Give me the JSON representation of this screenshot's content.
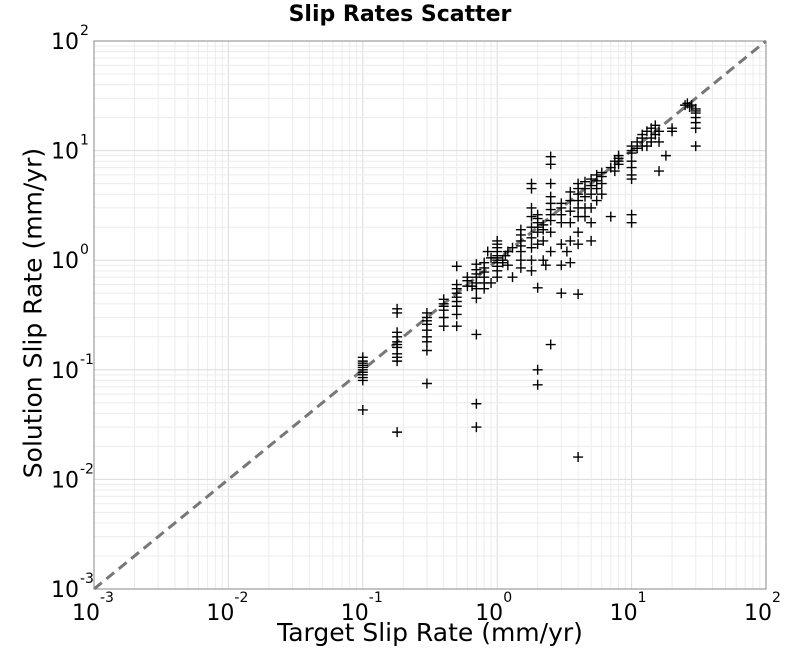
{
  "chart_data": {
    "type": "scatter",
    "title": "Slip Rates Scatter",
    "xlabel": "Target Slip Rate (mm/yr)",
    "ylabel": "Solution Slip Rate (mm/yr)",
    "xscale": "log",
    "yscale": "log",
    "xlim": [
      0.001,
      100
    ],
    "ylim": [
      0.001,
      100
    ],
    "grid": true,
    "marker": "+",
    "marker_color": "#000000",
    "reference_line": {
      "style": "dashed",
      "color": "#777777",
      "x": [
        0.001,
        100
      ],
      "y": [
        0.001,
        100
      ]
    },
    "x_ticks": [
      {
        "base": "10",
        "exp": "-3"
      },
      {
        "base": "10",
        "exp": "-2"
      },
      {
        "base": "10",
        "exp": "-1"
      },
      {
        "base": "10",
        "exp": "0"
      },
      {
        "base": "10",
        "exp": "1"
      },
      {
        "base": "10",
        "exp": "2"
      }
    ],
    "y_ticks": [
      {
        "base": "10",
        "exp": "-3"
      },
      {
        "base": "10",
        "exp": "-2"
      },
      {
        "base": "10",
        "exp": "-1"
      },
      {
        "base": "10",
        "exp": "0"
      },
      {
        "base": "10",
        "exp": "1"
      },
      {
        "base": "10",
        "exp": "2"
      }
    ],
    "points": [
      [
        0.1,
        0.08
      ],
      [
        0.1,
        0.09
      ],
      [
        0.1,
        0.1
      ],
      [
        0.1,
        0.11
      ],
      [
        0.1,
        0.12
      ],
      [
        0.1,
        0.13
      ],
      [
        0.1,
        0.085
      ],
      [
        0.1,
        0.095
      ],
      [
        0.1,
        0.105
      ],
      [
        0.1,
        0.115
      ],
      [
        0.1,
        0.043
      ],
      [
        0.18,
        0.027
      ],
      [
        0.18,
        0.14
      ],
      [
        0.18,
        0.16
      ],
      [
        0.18,
        0.18
      ],
      [
        0.18,
        0.2
      ],
      [
        0.18,
        0.22
      ],
      [
        0.18,
        0.12
      ],
      [
        0.18,
        0.13
      ],
      [
        0.18,
        0.33
      ],
      [
        0.18,
        0.36
      ],
      [
        0.18,
        0.17
      ],
      [
        0.3,
        0.075
      ],
      [
        0.3,
        0.15
      ],
      [
        0.3,
        0.18
      ],
      [
        0.3,
        0.2
      ],
      [
        0.3,
        0.23
      ],
      [
        0.3,
        0.26
      ],
      [
        0.3,
        0.28
      ],
      [
        0.3,
        0.3
      ],
      [
        0.3,
        0.33
      ],
      [
        0.4,
        0.25
      ],
      [
        0.4,
        0.3
      ],
      [
        0.4,
        0.35
      ],
      [
        0.4,
        0.38
      ],
      [
        0.4,
        0.4
      ],
      [
        0.4,
        0.44
      ],
      [
        0.5,
        0.25
      ],
      [
        0.5,
        0.32
      ],
      [
        0.5,
        0.38
      ],
      [
        0.5,
        0.42
      ],
      [
        0.5,
        0.46
      ],
      [
        0.5,
        0.5
      ],
      [
        0.5,
        0.55
      ],
      [
        0.5,
        0.6
      ],
      [
        0.5,
        0.88
      ],
      [
        0.6,
        0.58
      ],
      [
        0.6,
        0.65
      ],
      [
        0.6,
        0.7
      ],
      [
        0.65,
        0.58
      ],
      [
        0.7,
        0.049
      ],
      [
        0.7,
        0.03
      ],
      [
        0.7,
        0.21
      ],
      [
        0.7,
        0.45
      ],
      [
        0.7,
        0.55
      ],
      [
        0.7,
        0.62
      ],
      [
        0.7,
        0.7
      ],
      [
        0.7,
        0.75
      ],
      [
        0.7,
        0.82
      ],
      [
        0.7,
        0.92
      ],
      [
        0.8,
        0.55
      ],
      [
        0.8,
        0.62
      ],
      [
        0.8,
        0.7
      ],
      [
        0.8,
        0.78
      ],
      [
        0.8,
        0.85
      ],
      [
        0.8,
        0.95
      ],
      [
        0.85,
        1.2
      ],
      [
        0.9,
        0.62
      ],
      [
        0.9,
        1.05
      ],
      [
        1.0,
        0.7
      ],
      [
        1.0,
        0.8
      ],
      [
        1.0,
        0.88
      ],
      [
        1.0,
        0.95
      ],
      [
        1.0,
        1.0
      ],
      [
        1.0,
        1.05
      ],
      [
        1.0,
        1.1
      ],
      [
        1.0,
        1.2
      ],
      [
        1.0,
        1.3
      ],
      [
        1.0,
        1.4
      ],
      [
        1.0,
        1.5
      ],
      [
        1.1,
        0.95
      ],
      [
        1.1,
        1.0
      ],
      [
        1.15,
        1.1
      ],
      [
        1.2,
        0.9
      ],
      [
        1.2,
        1.2
      ],
      [
        1.3,
        0.7
      ],
      [
        1.3,
        1.3
      ],
      [
        1.5,
        1.0
      ],
      [
        1.5,
        1.2
      ],
      [
        1.5,
        1.35
      ],
      [
        1.5,
        1.5
      ],
      [
        1.5,
        1.7
      ],
      [
        1.5,
        1.9
      ],
      [
        1.5,
        0.85
      ],
      [
        1.8,
        0.8
      ],
      [
        1.8,
        1.0
      ],
      [
        1.8,
        1.3
      ],
      [
        1.8,
        1.6
      ],
      [
        1.8,
        2.0
      ],
      [
        1.8,
        2.5
      ],
      [
        1.8,
        3.0
      ],
      [
        1.8,
        4.5
      ],
      [
        1.8,
        5.0
      ],
      [
        2.0,
        0.1
      ],
      [
        2.0,
        0.073
      ],
      [
        2.0,
        0.56
      ],
      [
        2.0,
        1.4
      ],
      [
        2.0,
        1.8
      ],
      [
        2.0,
        2.0
      ],
      [
        2.0,
        2.2
      ],
      [
        2.0,
        2.4
      ],
      [
        2.0,
        2.6
      ],
      [
        2.2,
        1.0
      ],
      [
        2.2,
        1.5
      ],
      [
        2.2,
        1.9
      ],
      [
        2.2,
        2.1
      ],
      [
        2.3,
        0.9
      ],
      [
        2.5,
        0.17
      ],
      [
        2.5,
        1.2
      ],
      [
        2.5,
        1.8
      ],
      [
        2.5,
        2.3
      ],
      [
        2.5,
        2.6
      ],
      [
        2.5,
        2.9
      ],
      [
        2.5,
        3.3
      ],
      [
        2.5,
        3.8
      ],
      [
        2.5,
        5.0
      ],
      [
        2.5,
        7.5
      ],
      [
        2.5,
        8.8
      ],
      [
        3.0,
        0.5
      ],
      [
        3.0,
        0.9
      ],
      [
        3.0,
        1.4
      ],
      [
        3.0,
        2.2
      ],
      [
        3.0,
        2.6
      ],
      [
        3.0,
        3.0
      ],
      [
        3.0,
        3.3
      ],
      [
        3.3,
        1.2
      ],
      [
        3.5,
        1.5
      ],
      [
        3.5,
        2.2
      ],
      [
        3.5,
        2.8
      ],
      [
        3.5,
        3.5
      ],
      [
        3.5,
        4.2
      ],
      [
        3.5,
        0.95
      ],
      [
        4.0,
        0.49
      ],
      [
        4.0,
        0.016
      ],
      [
        4.0,
        1.4
      ],
      [
        4.0,
        2.5
      ],
      [
        4.0,
        3.0
      ],
      [
        4.0,
        3.5
      ],
      [
        4.0,
        4.0
      ],
      [
        4.0,
        4.5
      ],
      [
        4.0,
        5.0
      ],
      [
        4.0,
        1.8
      ],
      [
        4.5,
        3.0
      ],
      [
        4.5,
        3.8
      ],
      [
        4.5,
        4.5
      ],
      [
        4.5,
        5.2
      ],
      [
        4.5,
        2.5
      ],
      [
        5.0,
        1.5
      ],
      [
        5.0,
        3.0
      ],
      [
        5.0,
        4.0
      ],
      [
        5.0,
        4.8
      ],
      [
        5.0,
        5.5
      ],
      [
        5.0,
        2.2
      ],
      [
        5.5,
        3.5
      ],
      [
        5.5,
        4.5
      ],
      [
        5.5,
        5.3
      ],
      [
        5.5,
        6.0
      ],
      [
        6.0,
        5.0
      ],
      [
        6.0,
        5.8
      ],
      [
        6.0,
        6.3
      ],
      [
        6.0,
        4.0
      ],
      [
        7.0,
        7.0
      ],
      [
        7.0,
        2.5
      ],
      [
        7.5,
        6.5
      ],
      [
        7.5,
        8.0
      ],
      [
        8.0,
        7.5
      ],
      [
        8.0,
        8.0
      ],
      [
        8.0,
        8.5
      ],
      [
        8.0,
        9.0
      ],
      [
        10.0,
        6.0
      ],
      [
        10.0,
        7.0
      ],
      [
        10.0,
        8.0
      ],
      [
        10.0,
        9.5
      ],
      [
        10.0,
        10.0
      ],
      [
        10.0,
        11.0
      ],
      [
        10.0,
        2.2
      ],
      [
        10.0,
        2.6
      ],
      [
        10.0,
        5.5
      ],
      [
        11.0,
        10.5
      ],
      [
        11.0,
        12.0
      ],
      [
        12.0,
        11.0
      ],
      [
        12.0,
        13.0
      ],
      [
        12.0,
        14.0
      ],
      [
        13.0,
        11.0
      ],
      [
        13.0,
        15.0
      ],
      [
        14.0,
        12.0
      ],
      [
        14.0,
        13.0
      ],
      [
        14.0,
        16.0
      ],
      [
        15.0,
        14.0
      ],
      [
        15.0,
        17.0
      ],
      [
        16.0,
        6.5
      ],
      [
        16.0,
        12.0
      ],
      [
        16.0,
        15.0
      ],
      [
        18.0,
        9.0
      ],
      [
        20.0,
        15.0
      ],
      [
        20.0,
        16.0
      ],
      [
        25.0,
        26.0
      ],
      [
        26.0,
        27.0
      ],
      [
        27.0,
        25.0
      ],
      [
        28.0,
        26.0
      ],
      [
        30.0,
        11.0
      ],
      [
        30.0,
        16.0
      ],
      [
        30.0,
        18.0
      ],
      [
        30.0,
        20.0
      ],
      [
        30.0,
        22.0
      ],
      [
        30.0,
        23.0
      ],
      [
        30.0,
        24.0
      ]
    ]
  }
}
